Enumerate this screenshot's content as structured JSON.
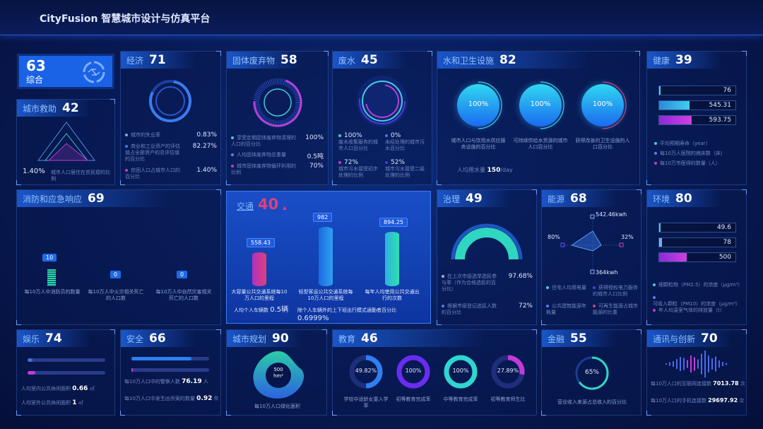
{
  "app": {
    "title": "CityFusion 智慧城市设计与仿真平台"
  },
  "colors": {
    "accent": "#1f6ae8",
    "cyan": "#2fd6d0",
    "magenta": "#c23ad8",
    "background": "#081a55"
  },
  "overall": {
    "score": "63",
    "label": "综合",
    "icon": "city-network-icon"
  },
  "aid": {
    "label": "城市救助",
    "score": "42",
    "value": "1.40%",
    "desc": "城市人口居住在贫民窟的比例"
  },
  "economy": {
    "label": "经济",
    "score": "71",
    "items": [
      {
        "text": "城市的失业率",
        "value": "0.83%"
      },
      {
        "text": "商业和工业资产的评估值占全部资产的总评估值的百分比",
        "value": "82.27%"
      },
      {
        "text": "贫困人口占城市人口的百分比",
        "value": "1.40%"
      }
    ]
  },
  "waste": {
    "label": "固体废弃物",
    "score": "58",
    "items": [
      {
        "text": "享受定期固体废弃物清理的人口的百分比",
        "value": "100%"
      },
      {
        "text": "人均固体废弃物总重量",
        "value": "0.5吨"
      },
      {
        "text": "城市固体废弃物循环利用的比例",
        "value": "70%"
      }
    ]
  },
  "wastewater": {
    "label": "废水",
    "score": "45",
    "items": [
      {
        "value": "100%",
        "text": "废水收集服务的城市人口百分比"
      },
      {
        "value": "0%",
        "text": "未经处理的城市污水百分比"
      },
      {
        "value": "72%",
        "text": "城市污水接受初步处理的比例"
      },
      {
        "value": "52%",
        "text": "城市污水接受二级处理的比例"
      }
    ]
  },
  "water": {
    "label": "水和卫生设施",
    "score": "82",
    "circles": [
      {
        "value": "100%",
        "text": "城市人口与饮用水供应服务设施的百分比"
      },
      {
        "value": "100%",
        "text": "可持续供给水资源的城市人口百分比"
      },
      {
        "value": "100%",
        "text": "获得改善的卫生设施的人口百分比"
      }
    ],
    "usage_label": "人均用水量",
    "usage_value": "150",
    "usage_unit": "/day"
  },
  "health": {
    "label": "健康",
    "score": "39",
    "bars": [
      {
        "value": "76",
        "fill": 0.02
      },
      {
        "value": "545.31",
        "fill": 0.4
      },
      {
        "value": "593.75",
        "fill": 0.43
      }
    ],
    "legend": [
      "平均预期寿命（year）",
      "每10万人医院的病床数（床）",
      "每10万市医师的数量（人）"
    ]
  },
  "fire": {
    "label": "消防和应急响应",
    "score": "69",
    "items": [
      {
        "value": "10",
        "text": "每10万人中消防员的数量"
      },
      {
        "value": "0",
        "text": "每10万人中火灾相关死亡的人口数"
      },
      {
        "value": "0",
        "text": "每10万人中自然灾害相关死亡的人口数"
      }
    ]
  },
  "transport": {
    "label": "交通",
    "score": "40",
    "trend": "▲",
    "bars": [
      {
        "value": "558.43",
        "text": "大容量公共交通系统每10万人口的里程"
      },
      {
        "value": "982",
        "text": "轻型客运公共交通系统每10万人口的里程"
      },
      {
        "value": "894.25",
        "text": "每年人均使用公共交通出行的次数"
      }
    ],
    "cars_label": "人均个人车辆数",
    "cars_value": "0.5辆",
    "commute_label": "除个人车辆外的上下班出行模式通勤者百分比",
    "commute_value": "0.6999%"
  },
  "governance": {
    "label": "治理",
    "score": "49",
    "gauge": 0.49,
    "items": [
      {
        "text": "在上次市级选举选民参与率（作为合格选民的百分比）",
        "value": "97.68%"
      },
      {
        "text": "根据市级登记选民人数的百分比",
        "value": "72%"
      }
    ]
  },
  "energy": {
    "label": "能源",
    "score": "68",
    "radar": {
      "top": "542.46kwh",
      "left": "80%",
      "right": "32%",
      "bottom": "364kwh"
    },
    "legend": [
      "住宅人均用电量",
      "获得授权电力服务的城市人口比例",
      "公共建筑能源年耗量",
      "可再生能源占城市能源的比重"
    ]
  },
  "environment": {
    "label": "环境",
    "score": "80",
    "bars": [
      {
        "value": "49.6",
        "fill": 0.02
      },
      {
        "value": "78",
        "fill": 0.04
      },
      {
        "value": "500",
        "fill": 0.36
      }
    ],
    "legend": [
      "细颗粒物（PM2.5）的浓度（μg/m³）",
      "可吸入颗粒（PM10）的浓度（μg/m³）",
      "年人均温室气体的排放量（t）"
    ]
  },
  "recreation": {
    "label": "娱乐",
    "score": "74",
    "bars": [
      0.06,
      0.1
    ],
    "items": [
      {
        "text": "人均室内公共休闲面积",
        "value": "0.66",
        "unit": "㎡"
      },
      {
        "text": "人均室外公共休闲面积",
        "value": "1",
        "unit": "㎡"
      }
    ]
  },
  "safety": {
    "label": "安全",
    "score": "66",
    "bars": [
      0.77,
      0.02
    ],
    "items": [
      {
        "text": "每10万人口中的警察人数",
        "value": "76.19",
        "unit": "人"
      },
      {
        "text": "每10万人口中发生凶杀案的数量",
        "value": "0.92",
        "unit": "件"
      }
    ]
  },
  "planning": {
    "label": "城市规划",
    "score": "90",
    "value": "500",
    "unit": "hm²",
    "text": "每10万人口绿化面积"
  },
  "education": {
    "label": "教育",
    "score": "46",
    "rings": [
      {
        "value": "49.82%",
        "pct": 49.82,
        "color": "#2f7ff0",
        "text": "学校中适龄女童入学率"
      },
      {
        "value": "100%",
        "pct": 100,
        "color": "#6a2cf0",
        "text": "初等教育完成率"
      },
      {
        "value": "100%",
        "pct": 100,
        "color": "#2fd6d0",
        "text": "中等教育完成率"
      },
      {
        "value": "27.89%",
        "pct": 27.89,
        "color": "#c23ad8",
        "text": "初等教育师生比"
      }
    ]
  },
  "finance": {
    "label": "金融",
    "score": "55",
    "value": "65%",
    "pct": 65,
    "text": "营业收入来源占总收入的百分比"
  },
  "telecom": {
    "label": "通讯与创新",
    "score": "70",
    "items": [
      {
        "text": "每10万人口的互联网连接数",
        "value": "7013.78",
        "unit": "次"
      },
      {
        "text": "每10万人口的手机连接数",
        "value": "29697.92",
        "unit": "次"
      }
    ]
  }
}
